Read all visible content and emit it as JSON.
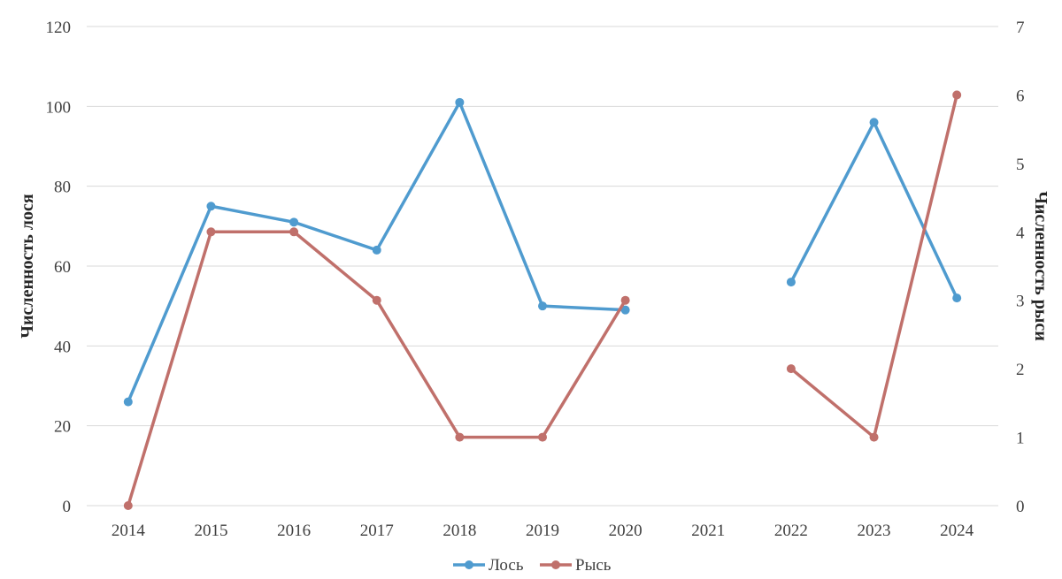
{
  "chart_data": {
    "type": "line",
    "categories": [
      "2014",
      "2015",
      "2016",
      "2017",
      "2018",
      "2019",
      "2020",
      "2021",
      "2022",
      "2023",
      "2024"
    ],
    "series": [
      {
        "name": "Лось",
        "axis": "left",
        "color": "#4f9bcf",
        "values": [
          26,
          75,
          71,
          64,
          101,
          50,
          49,
          null,
          56,
          96,
          52
        ]
      },
      {
        "name": "Рысь",
        "axis": "right",
        "color": "#c0706b",
        "values": [
          0,
          4,
          4,
          3,
          1,
          1,
          3,
          null,
          2,
          1,
          6
        ]
      }
    ],
    "ylabel": "Численность лося",
    "y2label": "Численность рыси",
    "ylim": [
      0,
      120
    ],
    "y2lim": [
      0,
      7
    ],
    "yticks": [
      "0",
      "20",
      "40",
      "60",
      "80",
      "100",
      "120"
    ],
    "y2ticks": [
      "0",
      "1",
      "2",
      "3",
      "4",
      "5",
      "6",
      "7"
    ],
    "grid": true,
    "legend": "bottom",
    "gridColor": "#d9d9d9"
  }
}
